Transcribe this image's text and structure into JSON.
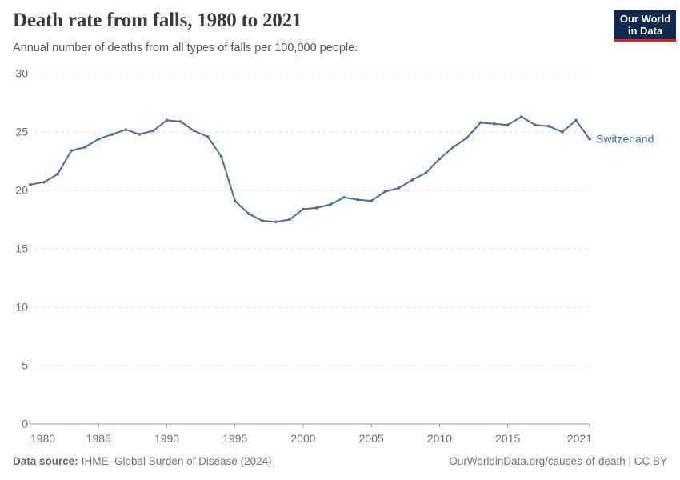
{
  "header": {
    "title": "Death rate from falls, 1980 to 2021",
    "subtitle": "Annual number of deaths from all types of falls per 100,000 people."
  },
  "logo": {
    "line1": "Our World",
    "line2": "in Data"
  },
  "chart_data": {
    "type": "line",
    "title": "Death rate from falls, 1980 to 2021",
    "subtitle": "Annual number of deaths from all types of falls per 100,000 people.",
    "xlabel": "",
    "ylabel": "",
    "ylim": [
      0,
      30
    ],
    "yticks": [
      0,
      5,
      10,
      15,
      20,
      25,
      30
    ],
    "xticks": [
      1980,
      1985,
      1990,
      1995,
      2000,
      2005,
      2010,
      2015,
      2021
    ],
    "grid": "horizontal-dashed",
    "legend_position": "end-of-line-label",
    "x": [
      1980,
      1981,
      1982,
      1983,
      1984,
      1985,
      1986,
      1987,
      1988,
      1989,
      1990,
      1991,
      1992,
      1993,
      1994,
      1995,
      1996,
      1997,
      1998,
      1999,
      2000,
      2001,
      2002,
      2003,
      2004,
      2005,
      2006,
      2007,
      2008,
      2009,
      2010,
      2011,
      2012,
      2013,
      2014,
      2015,
      2016,
      2017,
      2018,
      2019,
      2020,
      2021
    ],
    "series": [
      {
        "name": "Switzerland",
        "color": "#4C6A9C",
        "values": [
          20.5,
          20.7,
          21.4,
          23.4,
          23.7,
          24.4,
          24.8,
          25.2,
          24.8,
          25.1,
          26.0,
          25.9,
          25.1,
          24.6,
          22.9,
          19.1,
          18.0,
          17.4,
          17.3,
          17.5,
          18.4,
          18.5,
          18.8,
          19.4,
          19.2,
          19.1,
          19.9,
          20.2,
          20.9,
          21.5,
          22.7,
          23.7,
          24.5,
          25.8,
          25.7,
          25.6,
          26.3,
          25.6,
          25.5,
          25.0,
          26.0,
          24.4
        ]
      }
    ]
  },
  "footer": {
    "source_label": "Data source:",
    "source_text": "IHME, Global Burden of Disease (2024)",
    "credit": "OurWorldinData.org/causes-of-death | CC BY"
  },
  "colors": {
    "line": "#4C6A9C",
    "grid": "#dcdcdc",
    "axis": "#9c9c9c",
    "tick_label": "#6e6e6e",
    "title": "#3a3a3a",
    "subtitle": "#565656",
    "footer": "#757575",
    "logo_bg": "#10294F",
    "logo_accent": "#CE261D"
  }
}
